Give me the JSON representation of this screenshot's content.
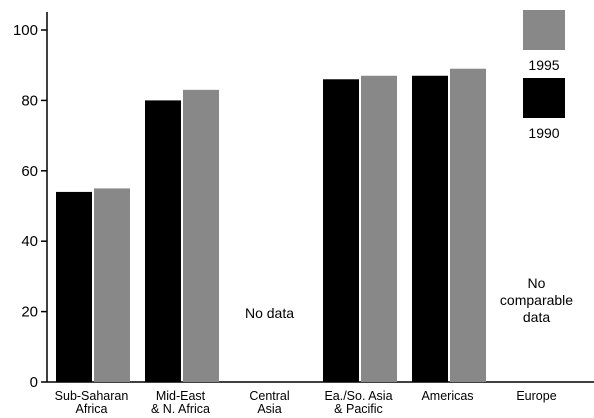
{
  "chart_data": {
    "type": "bar",
    "categories": [
      [
        "Sub-Saharan",
        "Africa"
      ],
      [
        "Mid-East",
        "& N. Africa"
      ],
      [
        "Central",
        "Asia"
      ],
      [
        "Ea./So. Asia",
        "& Pacific"
      ],
      [
        "Americas"
      ],
      [
        "Europe"
      ]
    ],
    "series": [
      {
        "name": "1990",
        "color": "#000000",
        "values": [
          54,
          80,
          null,
          86,
          87,
          null
        ]
      },
      {
        "name": "1995",
        "color": "#888888",
        "values": [
          55,
          83,
          null,
          87,
          89,
          null
        ]
      }
    ],
    "annotations": [
      {
        "category_index": 2,
        "lines": [
          "No data"
        ]
      },
      {
        "category_index": 5,
        "lines": [
          "No",
          "comparable",
          "data"
        ]
      }
    ],
    "yticks": [
      0,
      20,
      40,
      60,
      80,
      100
    ],
    "ylim": [
      0,
      100
    ],
    "legend_placement": "top-right",
    "grid": false,
    "title": "",
    "xlabel": "",
    "ylabel": ""
  }
}
